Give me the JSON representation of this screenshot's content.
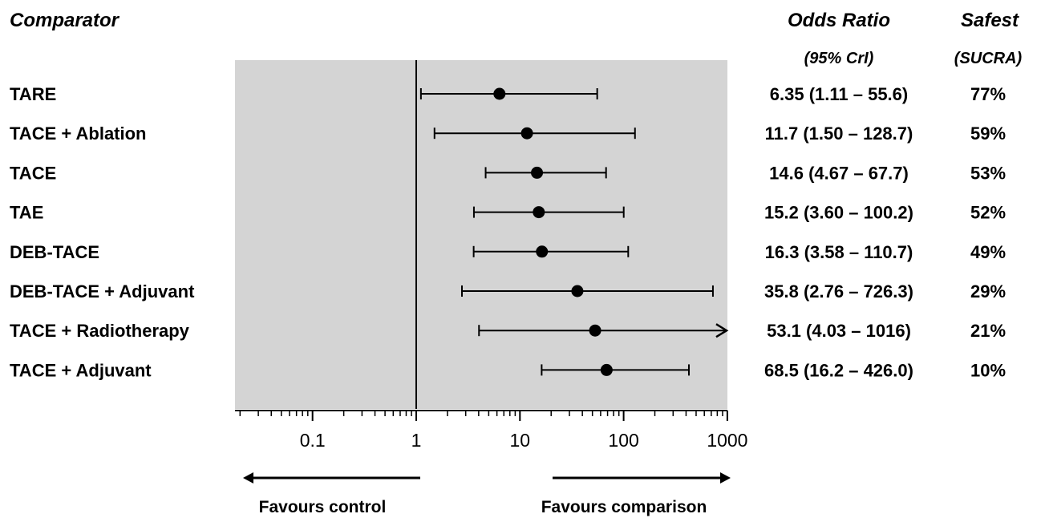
{
  "chart_data": {
    "type": "forest",
    "headers": {
      "comparator": "Comparator",
      "odds_ratio": "Odds Ratio",
      "odds_ratio_sub": "(95% CrI)",
      "safest": "Safest",
      "safest_sub": "(SUCRA)"
    },
    "x_axis": {
      "scale": "log",
      "range": [
        0.02,
        1000
      ],
      "ticks": [
        {
          "value": 0.1,
          "label": "0.1"
        },
        {
          "value": 1,
          "label": "1"
        },
        {
          "value": 10,
          "label": "10"
        },
        {
          "value": 100,
          "label": "100"
        },
        {
          "value": 1000,
          "label": "1000"
        }
      ],
      "reference_line": 1
    },
    "rows": [
      {
        "label": "TARE",
        "or": 6.35,
        "lo": 1.11,
        "hi": 55.6,
        "or_text": "6.35 (1.11 – 55.6)",
        "sucra": "77%",
        "arrow": false
      },
      {
        "label": "TACE + Ablation",
        "or": 11.7,
        "lo": 1.5,
        "hi": 128.7,
        "or_text": "11.7 (1.50 – 128.7)",
        "sucra": "59%",
        "arrow": false
      },
      {
        "label": "TACE",
        "or": 14.6,
        "lo": 4.67,
        "hi": 67.7,
        "or_text": "14.6 (4.67 – 67.7)",
        "sucra": "53%",
        "arrow": false
      },
      {
        "label": "TAE",
        "or": 15.2,
        "lo": 3.6,
        "hi": 100.2,
        "or_text": "15.2 (3.60 – 100.2)",
        "sucra": "52%",
        "arrow": false
      },
      {
        "label": "DEB-TACE",
        "or": 16.3,
        "lo": 3.58,
        "hi": 110.7,
        "or_text": "16.3 (3.58 – 110.7)",
        "sucra": "49%",
        "arrow": false
      },
      {
        "label": "DEB-TACE + Adjuvant",
        "or": 35.8,
        "lo": 2.76,
        "hi": 726.3,
        "or_text": "35.8 (2.76 – 726.3)",
        "sucra": "29%",
        "arrow": false
      },
      {
        "label": "TACE + Radiotherapy",
        "or": 53.1,
        "lo": 4.03,
        "hi": 1016,
        "or_text": "53.1 (4.03 – 1016)",
        "sucra": "21%",
        "arrow": true
      },
      {
        "label": "TACE + Adjuvant",
        "or": 68.5,
        "lo": 16.2,
        "hi": 426.0,
        "or_text": "68.5 (16.2 – 426.0)",
        "sucra": "10%",
        "arrow": false
      }
    ],
    "favours": {
      "left": "Favours control",
      "right": "Favours comparison"
    },
    "colors": {
      "panel": "#d4d4d4",
      "ink": "#000000"
    }
  }
}
